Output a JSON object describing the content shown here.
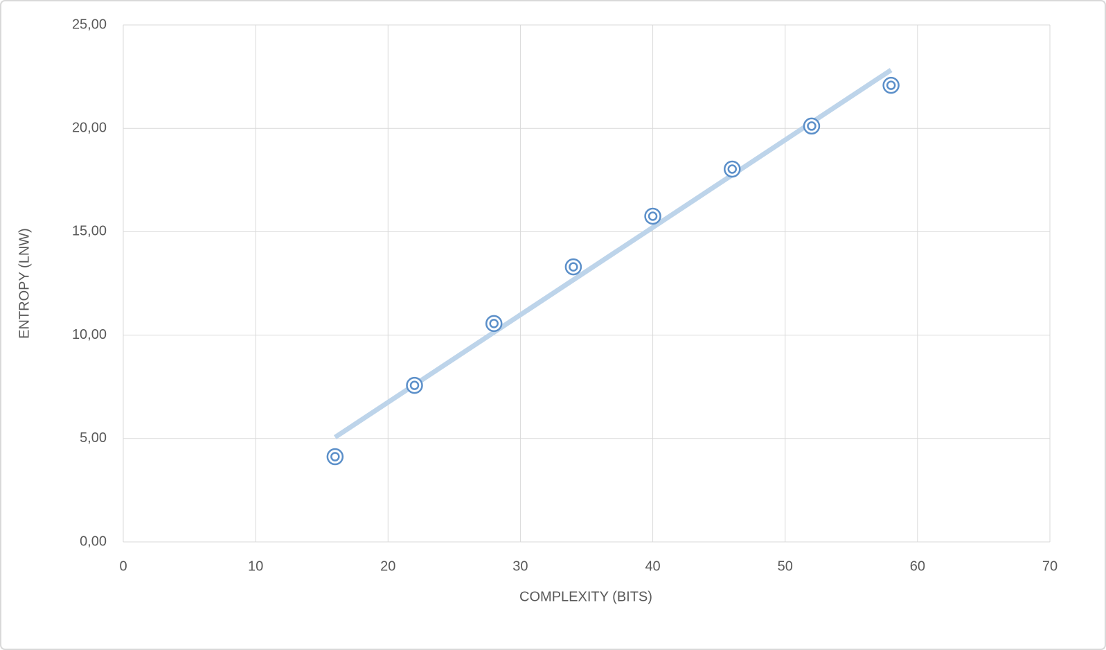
{
  "chart_data": {
    "type": "scatter",
    "x_label": "COMPLEXITY (BITS)",
    "y_label": "ENTROPY (LNW)",
    "series": [
      {
        "color": "#5b8fc9",
        "x": [
          16,
          22,
          28,
          34,
          40,
          46,
          52,
          58
        ],
        "values": [
          4.12,
          7.57,
          10.56,
          13.3,
          15.75,
          18.03,
          20.11,
          22.08
        ]
      }
    ],
    "trendline": {
      "color": "#bdd4ea",
      "x": [
        16,
        58
      ],
      "values": [
        5.06,
        22.82
      ]
    },
    "xlim": [
      0,
      70
    ],
    "xticks": [
      0,
      10,
      20,
      30,
      40,
      50,
      60,
      70
    ],
    "ylim": [
      0,
      25
    ],
    "yticks": [
      {
        "value": 0,
        "label": "0,00"
      },
      {
        "value": 5,
        "label": "5,00"
      },
      {
        "value": 10,
        "label": "10,00"
      },
      {
        "value": 15,
        "label": "15,00"
      },
      {
        "value": 20,
        "label": "20,00"
      },
      {
        "value": 25,
        "label": "25,00"
      }
    ],
    "grid": true
  }
}
